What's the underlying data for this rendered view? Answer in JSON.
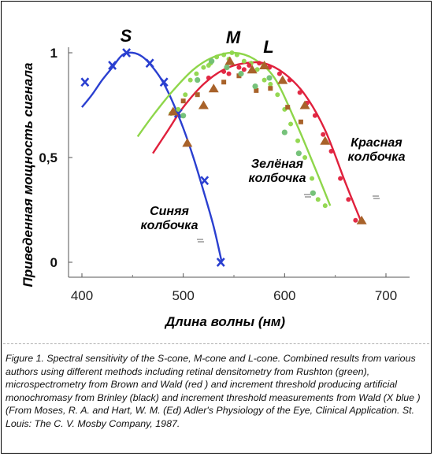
{
  "chart_data": {
    "type": "line",
    "xlabel": "Длина волны (нм)",
    "ylabel": "Приведенная мощность сигнала",
    "xlim": [
      380,
      700
    ],
    "ylim": [
      0,
      1
    ],
    "x_ticks": [
      "400",
      "500",
      "600",
      "700"
    ],
    "y_ticks": [
      "0",
      "0,5",
      "1"
    ],
    "grid": false,
    "curve_letters": [
      "S",
      "M",
      "L"
    ],
    "series_labels": [
      {
        "lines": [
          "Синяя",
          "колбочка"
        ]
      },
      {
        "lines": [
          "Зелёная",
          "колбочка"
        ]
      },
      {
        "lines": [
          "Красная",
          "колбочка"
        ]
      }
    ],
    "colors": {
      "blue": "#2a3fd0",
      "green": "#8ed64a",
      "red": "#e0203c",
      "brown": "#a8622a",
      "rushton_green": "#6fbf73"
    },
    "series": [
      {
        "color": "#2a3fd0",
        "curve": [
          [
            400,
            0.74
          ],
          [
            410,
            0.8
          ],
          [
            420,
            0.87
          ],
          [
            430,
            0.93
          ],
          [
            440,
            0.99
          ],
          [
            450,
            1.0
          ],
          [
            460,
            0.98
          ],
          [
            470,
            0.93
          ],
          [
            480,
            0.86
          ],
          [
            490,
            0.76
          ],
          [
            500,
            0.64
          ],
          [
            510,
            0.5
          ],
          [
            520,
            0.34
          ],
          [
            530,
            0.17
          ],
          [
            538,
            0.0
          ]
        ],
        "x_points": [
          [
            403,
            0.86
          ],
          [
            430,
            0.94
          ],
          [
            444,
            1.0
          ],
          [
            467,
            0.95
          ],
          [
            481,
            0.86
          ],
          [
            495,
            0.71
          ],
          [
            521,
            0.39
          ],
          [
            537,
            0.0
          ]
        ]
      },
      {
        "color": "#8ed64a",
        "curve": [
          [
            455,
            0.6
          ],
          [
            470,
            0.7
          ],
          [
            490,
            0.82
          ],
          [
            510,
            0.92
          ],
          [
            530,
            0.98
          ],
          [
            550,
            1.0
          ],
          [
            570,
            0.97
          ],
          [
            590,
            0.88
          ],
          [
            610,
            0.68
          ],
          [
            630,
            0.45
          ],
          [
            645,
            0.27
          ]
        ],
        "points": [
          [
            488,
            0.71
          ],
          [
            495,
            0.73
          ],
          [
            502,
            0.8
          ],
          [
            507,
            0.87
          ],
          [
            513,
            0.9
          ],
          [
            520,
            0.93
          ],
          [
            527,
            0.95
          ],
          [
            533,
            0.98
          ],
          [
            540,
            0.99
          ],
          [
            548,
            1.0
          ],
          [
            553,
            0.99
          ],
          [
            560,
            0.96
          ],
          [
            567,
            0.95
          ],
          [
            573,
            0.92
          ],
          [
            580,
            0.87
          ],
          [
            586,
            0.85
          ],
          [
            593,
            0.8
          ],
          [
            600,
            0.73
          ],
          [
            606,
            0.66
          ],
          [
            613,
            0.58
          ],
          [
            620,
            0.5
          ],
          [
            627,
            0.4
          ],
          [
            633,
            0.3
          ],
          [
            640,
            0.27
          ],
          [
            525,
            0.94
          ],
          [
            545,
            0.97
          ]
        ]
      },
      {
        "color": "#e0203c",
        "curve": [
          [
            470,
            0.52
          ],
          [
            485,
            0.63
          ],
          [
            500,
            0.74
          ],
          [
            520,
            0.85
          ],
          [
            540,
            0.92
          ],
          [
            560,
            0.95
          ],
          [
            580,
            0.95
          ],
          [
            600,
            0.9
          ],
          [
            620,
            0.8
          ],
          [
            640,
            0.63
          ],
          [
            660,
            0.38
          ],
          [
            675,
            0.2
          ]
        ],
        "points": [
          [
            525,
            0.88
          ],
          [
            540,
            0.91
          ],
          [
            555,
            0.93
          ],
          [
            565,
            0.94
          ],
          [
            575,
            0.95
          ],
          [
            585,
            0.93
          ],
          [
            595,
            0.9
          ],
          [
            605,
            0.87
          ],
          [
            615,
            0.81
          ],
          [
            622,
            0.76
          ],
          [
            630,
            0.7
          ],
          [
            638,
            0.61
          ],
          [
            646,
            0.53
          ],
          [
            655,
            0.4
          ],
          [
            663,
            0.3
          ],
          [
            670,
            0.2
          ],
          [
            545,
            0.9
          ],
          [
            560,
            0.92
          ]
        ]
      },
      {
        "color": "#a8622a",
        "triangles": [
          [
            490,
            0.72
          ],
          [
            504,
            0.57
          ],
          [
            520,
            0.75
          ],
          [
            530,
            0.83
          ],
          [
            546,
            0.96
          ],
          [
            568,
            0.92
          ],
          [
            580,
            0.94
          ],
          [
            598,
            0.87
          ],
          [
            620,
            0.75
          ],
          [
            640,
            0.58
          ],
          [
            676,
            0.2
          ]
        ],
        "squares": [
          [
            500,
            0.77
          ],
          [
            514,
            0.8
          ],
          [
            540,
            0.86
          ],
          [
            555,
            0.89
          ],
          [
            572,
            0.82
          ],
          [
            586,
            0.83
          ],
          [
            603,
            0.74
          ],
          [
            616,
            0.67
          ]
        ]
      },
      {
        "color": "#6fbf73",
        "points": [
          [
            500,
            0.7
          ],
          [
            514,
            0.87
          ],
          [
            528,
            0.96
          ],
          [
            543,
            0.93
          ],
          [
            557,
            0.9
          ],
          [
            571,
            0.84
          ],
          [
            585,
            0.88
          ],
          [
            600,
            0.62
          ],
          [
            614,
            0.52
          ],
          [
            628,
            0.33
          ]
        ]
      }
    ]
  },
  "caption": "Figure 1. Spectral sensitivity of the S-cone, M-cone and L-cone. Combined results from various authors using different methods including retinal densitometry from Rushton (green), microspectrometry from Brown and Wald (red ) and increment threshold producing artificial monochromasy from Brinley (black) and increment threshold measurements from Wald (X blue ) (From Moses, R. A. and Hart, W. M. (Ed) Adler's Physiology of the Eye, Clinical Application. St. Louis: The C. V. Mosby Company, 1987."
}
